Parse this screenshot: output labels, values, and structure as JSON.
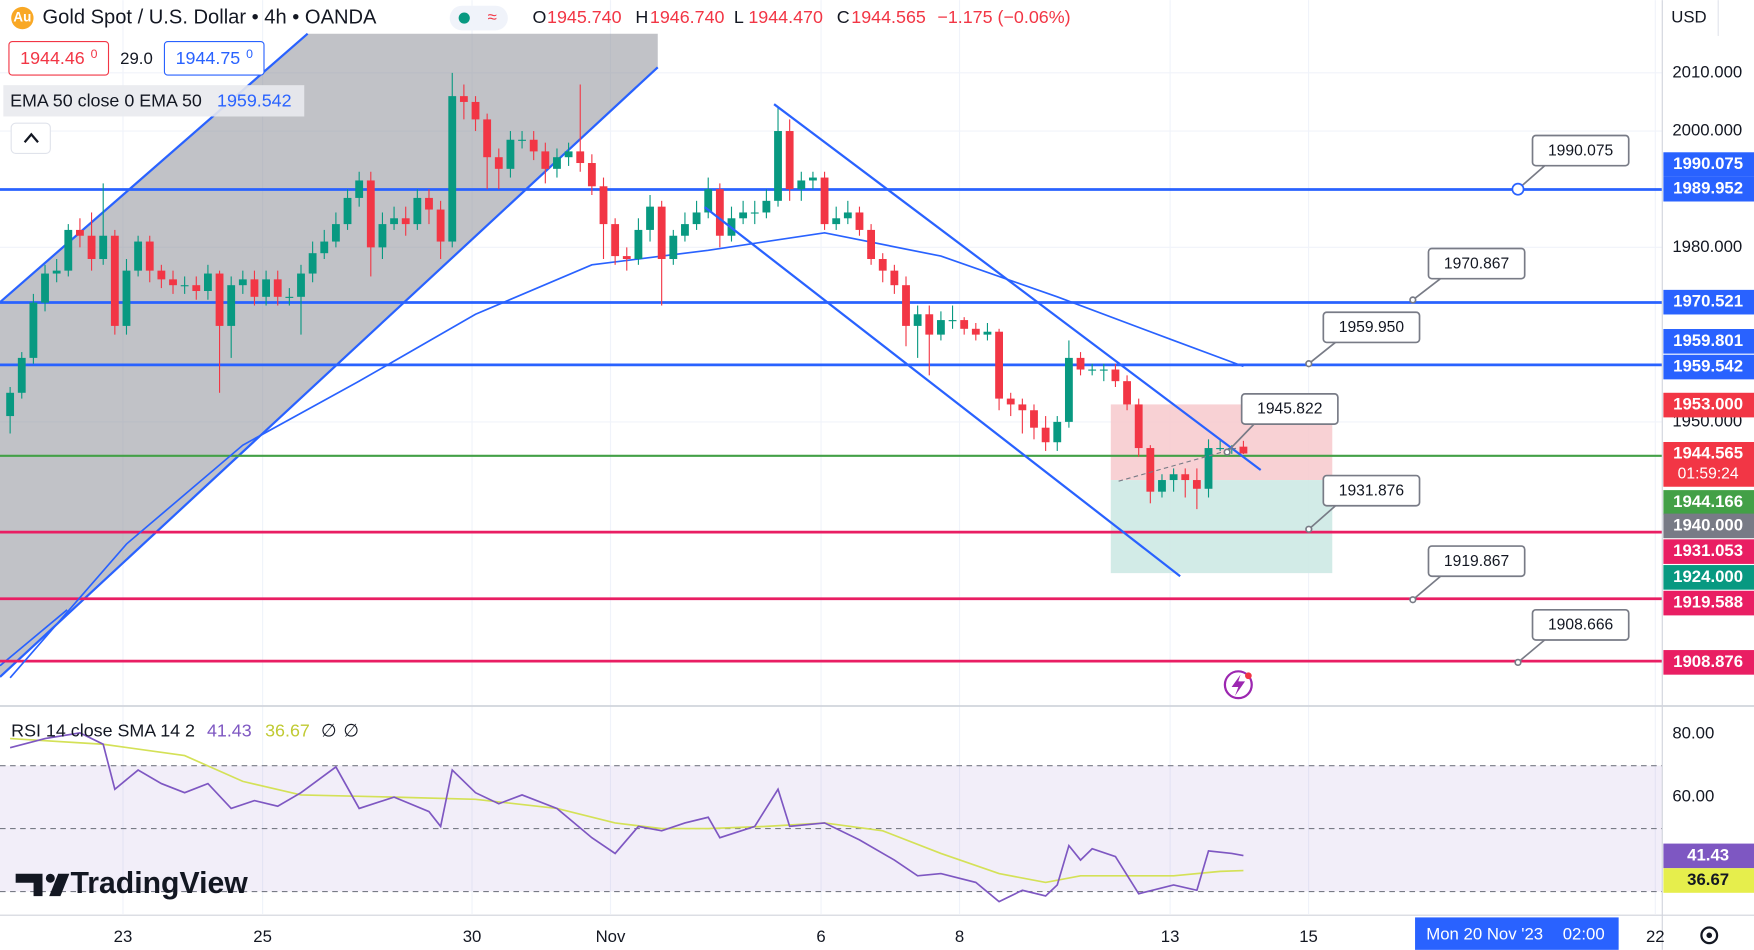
{
  "chart_data": {
    "type": "candlestick",
    "title": "Gold Spot / U.S. Dollar • 4h • OANDA",
    "ohlc_legend": [
      {
        "key": "O",
        "value": "1945.740"
      },
      {
        "key": "H",
        "value": "1946.740"
      },
      {
        "key": "L",
        "value": "1944.470"
      },
      {
        "key": "C",
        "value": "1944.565"
      }
    ],
    "change": "−1.175 (−0.06%)",
    "quote": {
      "sell": "1944.46",
      "sell_small": "0",
      "spread": "29.0",
      "buy": "1944.75",
      "buy_small": "0"
    },
    "currency": "USD",
    "up_color": "#089981",
    "down_color": "#f23645",
    "open": [
      1951,
      1955,
      1961,
      1970.5,
      1975.5,
      1976,
      1983,
      1982,
      1978,
      1982,
      1966.5,
      1976,
      1981,
      1976,
      1974.5,
      1973.5,
      1973.5,
      1972.5,
      1975.5,
      1966.5,
      1973.5,
      1974.5,
      1971.5,
      1974.5,
      1971.5,
      1971.5,
      1975.5,
      1979,
      1981,
      1984,
      1988.5,
      1991.5,
      1980,
      1984,
      1985,
      1984,
      1988.5,
      1986.5,
      1981,
      2006,
      2005,
      2002,
      1995.5,
      1993.5,
      1998.5,
      1998.5,
      1996.5,
      1993.5,
      1995.5,
      1996.5,
      1994.5,
      1990.5,
      1984,
      1978.5,
      1978,
      1983,
      1987,
      1978,
      1982,
      1984,
      1986,
      1990,
      1982,
      1985,
      1986,
      1986,
      1988,
      2000,
      1990,
      1991.5,
      1992,
      1984,
      1985,
      1986,
      1983,
      1978,
      1976,
      1973.5,
      1966.5,
      1968.5,
      1965,
      1967.5,
      1967.5,
      1966,
      1965,
      1965.5,
      1954,
      1953,
      1952,
      1949,
      1946.5,
      1950,
      1961,
      1959,
      1959,
      1959,
      1957,
      1953,
      1945.5,
      1938,
      1940,
      1941,
      1940,
      1938.5,
      1945.5,
      1945.5,
      1945.74
    ],
    "high": [
      1956,
      1962,
      1972,
      1977,
      1978,
      1984,
      1985,
      1986,
      1991,
      1983,
      1978,
      1982,
      1982,
      1977,
      1976,
      1975,
      1975,
      1977,
      1976,
      1975,
      1976,
      1976,
      1976,
      1976,
      1973,
      1977,
      1981,
      1983,
      1986,
      1990,
      1993,
      1993,
      1986,
      1987,
      1987,
      1990,
      1990,
      1988,
      2010,
      2008,
      2006,
      2003,
      1997,
      2000,
      2000,
      2000,
      1998,
      1997,
      1998,
      2008,
      1996,
      1992,
      1985,
      1980,
      1985,
      1989,
      1988,
      1983,
      1986,
      1988,
      1992,
      1991,
      1987,
      1988,
      1988,
      1990,
      2004,
      2002,
      1993,
      1993,
      1993,
      1987,
      1988,
      1987,
      1984,
      1979,
      1977,
      1975,
      1970,
      1970,
      1969,
      1970,
      1968,
      1967,
      1967,
      1966,
      1955,
      1954,
      1953,
      1951,
      1951,
      1964,
      1962,
      1960,
      1960,
      1960,
      1958,
      1954,
      1946,
      1941,
      1942,
      1942,
      1942,
      1947,
      1947,
      1946,
      1946.74
    ],
    "low": [
      1948,
      1954,
      1960,
      1969,
      1974,
      1975,
      1980,
      1976,
      1977,
      1965,
      1965,
      1975,
      1974,
      1973,
      1972,
      1972,
      1971,
      1971,
      1955,
      1961,
      1972,
      1970,
      1970,
      1970,
      1970,
      1965,
      1974,
      1978,
      1980,
      1983,
      1987,
      1975,
      1978,
      1983,
      1982,
      1983,
      1984,
      1978,
      1980,
      2002,
      2000,
      1990,
      1990,
      1992,
      1997,
      1995,
      1991,
      1992,
      1994,
      1993,
      1989,
      1978,
      1977,
      1976,
      1977,
      1981,
      1970,
      1977,
      1981,
      1983,
      1985,
      1980,
      1981,
      1984,
      1984,
      1985,
      1987,
      1988,
      1988,
      1990,
      1983,
      1983,
      1984,
      1982,
      1977,
      1974,
      1972,
      1963,
      1961,
      1958,
      1964,
      1966,
      1965,
      1964,
      1964,
      1952,
      1951,
      1948,
      1947,
      1945,
      1945,
      1949,
      1958,
      1958,
      1957,
      1956,
      1952,
      1944,
      1936,
      1937,
      1938,
      1937,
      1935,
      1937,
      1945,
      1944.5,
      1944.47
    ],
    "close": [
      1955,
      1961,
      1970.5,
      1975.5,
      1976,
      1983,
      1982,
      1978,
      1982,
      1966.5,
      1976,
      1981,
      1976,
      1974.5,
      1973.5,
      1973.5,
      1972.5,
      1975.5,
      1966.5,
      1973.5,
      1974.5,
      1971.5,
      1974.5,
      1971.5,
      1971.5,
      1975.5,
      1979,
      1981,
      1984,
      1988.5,
      1991.5,
      1980,
      1984,
      1985,
      1984,
      1988.5,
      1986.5,
      1981,
      2006,
      2005,
      2002,
      1995.5,
      1993.5,
      1998.5,
      1998.5,
      1996.5,
      1993.5,
      1995.5,
      1996.5,
      1994.5,
      1990.5,
      1984,
      1978.5,
      1978,
      1983,
      1987,
      1978,
      1982,
      1984,
      1986,
      1990,
      1982,
      1985,
      1986,
      1986,
      1988,
      2000,
      1990,
      1991.5,
      1992,
      1984,
      1985,
      1986,
      1983,
      1978,
      1976,
      1973.5,
      1966.5,
      1968.5,
      1965,
      1967.5,
      1967.5,
      1966,
      1965,
      1965.5,
      1954,
      1953,
      1952,
      1949,
      1946.5,
      1950,
      1961,
      1959,
      1959,
      1959,
      1957,
      1953,
      1945.5,
      1938,
      1940,
      1941,
      1940,
      1938.5,
      1945.5,
      1945.5,
      1945.5,
      1944.565
    ],
    "ema": {
      "legend": "EMA 50 close 0 EMA 50",
      "value": "1959.542",
      "color": "#2962ff",
      "x": [
        0,
        10,
        20,
        30,
        40,
        50,
        60,
        70,
        80,
        90,
        100,
        106
      ],
      "values": [
        1906,
        1929,
        1946,
        1957,
        1968.5,
        1977,
        1979.5,
        1982.5,
        1978.5,
        1971.5,
        1964,
        1959.542
      ]
    },
    "price_tags": [
      {
        "value": 1990.075,
        "label": "1990.075",
        "color": "#2962ff"
      },
      {
        "value": 1989.952,
        "label": "1989.952",
        "color": "#2962ff",
        "line": true
      },
      {
        "value": 1970.521,
        "label": "1970.521",
        "color": "#2962ff",
        "line": true
      },
      {
        "value": 1959.801,
        "label": "1959.801",
        "color": "#2962ff",
        "line": true
      },
      {
        "value": 1959.542,
        "label": "1959.542",
        "color": "#2962ff"
      },
      {
        "value": 1953,
        "label": "1953.000",
        "color": "#f23645"
      },
      {
        "value": 1944.565,
        "label": "1944.565",
        "color": "#f23645"
      },
      {
        "value": 1944.166,
        "label": "1944.166",
        "color": "#43a047",
        "line": true
      },
      {
        "value": 1940,
        "label": "1940.000",
        "color": "#787b86"
      },
      {
        "value": 1931.053,
        "label": "1931.053",
        "color": "#e91e63",
        "line": true
      },
      {
        "value": 1924,
        "label": "1924.000",
        "color": "#089981"
      },
      {
        "value": 1919.588,
        "label": "1919.588",
        "color": "#e91e63",
        "line": true
      },
      {
        "value": 1908.876,
        "label": "1908.876",
        "color": "#e91e63",
        "line": true
      }
    ],
    "countdown": "01:59:24",
    "callouts": [
      "1990.075",
      "1970.867",
      "1959.950",
      "1945.822",
      "1931.876",
      "1919.867",
      "1908.666"
    ],
    "xlim": [
      -0.87,
      142
    ],
    "xticks": [
      {
        "value": 9.7,
        "label": "23"
      },
      {
        "value": 21.7,
        "label": "25"
      },
      {
        "value": 39.7,
        "label": "30"
      },
      {
        "value": 51.6,
        "label": "Nov"
      },
      {
        "value": 69.7,
        "label": "6"
      },
      {
        "value": 81.6,
        "label": "8"
      },
      {
        "value": 99.7,
        "label": "13"
      },
      {
        "value": 111.6,
        "label": "15"
      },
      {
        "value": 141.4,
        "label": "22"
      }
    ],
    "ylim": [
      1901.35,
      2022.5
    ],
    "yticks": [
      {
        "value": 2010,
        "label": "2010.000"
      },
      {
        "value": 2000,
        "label": "2000.000"
      },
      {
        "value": 1980,
        "label": "1980.000"
      },
      {
        "value": 1950,
        "label": "1950.000"
      }
    ],
    "grid": true,
    "crosshair_date": "Mon 20 Nov '23",
    "crosshair_time": "02:00",
    "rsi": {
      "legend": "RSI 14 close SMA 14 2",
      "extra": [
        "∅",
        "∅"
      ],
      "color": "#7e57c2",
      "ylim": [
        23.2,
        88.6
      ],
      "yticks": [
        {
          "value": 80,
          "label": "80.00"
        },
        {
          "value": 60,
          "label": "60.00"
        }
      ],
      "band_lines": [
        70,
        50,
        30
      ],
      "x": [
        0,
        3,
        6,
        8,
        9,
        11,
        13,
        15,
        17,
        19,
        21,
        23,
        25,
        28,
        30,
        33,
        36,
        37,
        38,
        40,
        42,
        44,
        47,
        50,
        52,
        54,
        56,
        58,
        60,
        61,
        64,
        66,
        67,
        70,
        73,
        76,
        78,
        80,
        83,
        85,
        87,
        89,
        90,
        91,
        92,
        93,
        95,
        97,
        100,
        102,
        103,
        105,
        106
      ],
      "values": [
        75.7,
        78.6,
        80.4,
        76.8,
        62.5,
        68.6,
        64.3,
        61.4,
        64.3,
        56.4,
        58.9,
        57.1,
        61.4,
        69.6,
        56.4,
        60,
        55.4,
        50.7,
        68.6,
        61.4,
        57.9,
        60.7,
        56.4,
        47.1,
        42.1,
        50.7,
        49.3,
        51.8,
        53.6,
        47.1,
        50.7,
        62.5,
        50.7,
        51.8,
        46.4,
        40,
        35,
        35.7,
        32.9,
        26.8,
        30.4,
        28.6,
        32.1,
        44.6,
        40,
        43.6,
        41.1,
        29.3,
        32.1,
        30.4,
        42.9,
        42.1,
        41.43
      ],
      "sma": {
        "color": "#d4e157",
        "x": [
          0,
          8,
          15,
          20,
          25,
          33,
          40,
          47,
          52,
          56,
          60,
          65,
          70,
          75,
          80,
          85,
          89,
          92,
          96,
          100,
          104,
          106
        ],
        "values": [
          78.6,
          76.8,
          73.2,
          65,
          60.7,
          60,
          59.3,
          56.4,
          51.8,
          50,
          50,
          50.7,
          51.8,
          49.3,
          42.1,
          35.7,
          32.9,
          35,
          35,
          35,
          36.4,
          36.67
        ]
      },
      "tags": [
        {
          "value": 41.43,
          "color": "#7e57c2",
          "text_color": "#ffffff"
        },
        {
          "value": 36.67,
          "color": "#e6ee4c",
          "text_color": "#131722"
        }
      ]
    }
  },
  "brand": "TradingView"
}
